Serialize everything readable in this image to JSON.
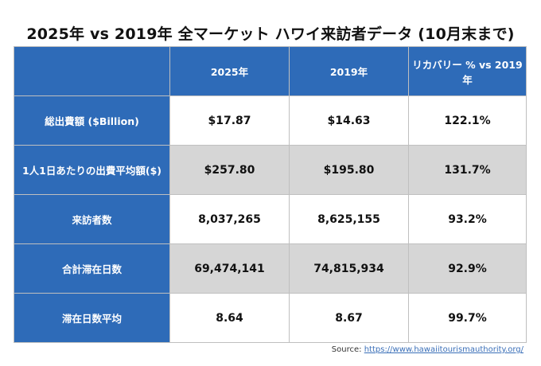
{
  "title": "2025年 vs 2019年 全マーケット  ハワイ来訪者データ (10月末まで)",
  "table": {
    "columns": [
      "",
      "2025年",
      "2019年",
      "リカバリー % vs 2019年"
    ],
    "rows": [
      {
        "label": "総出費額 ($Billion)",
        "v2025": "$17.87",
        "v2019": "$14.63",
        "recovery": "122.1%"
      },
      {
        "label": "1人1日あたりの出費平均額($)",
        "v2025": "$257.80",
        "v2019": "$195.80",
        "recovery": "131.7%"
      },
      {
        "label": "来訪者数",
        "v2025": "8,037,265",
        "v2019": "8,625,155",
        "recovery": "93.2%"
      },
      {
        "label": "合計滞在日数",
        "v2025": "69,474,141",
        "v2019": "74,815,934",
        "recovery": "92.9%"
      },
      {
        "label": "滞在日数平均",
        "v2025": "8.64",
        "v2019": "8.67",
        "recovery": "99.7%"
      }
    ]
  },
  "source": {
    "label": "Source: ",
    "url": "https://www.hawaiitourismauthority.org/"
  },
  "colors": {
    "header_blue": "#2e6bb8",
    "shaded_row": "#d6d6d6",
    "link": "#3a6fb8"
  }
}
